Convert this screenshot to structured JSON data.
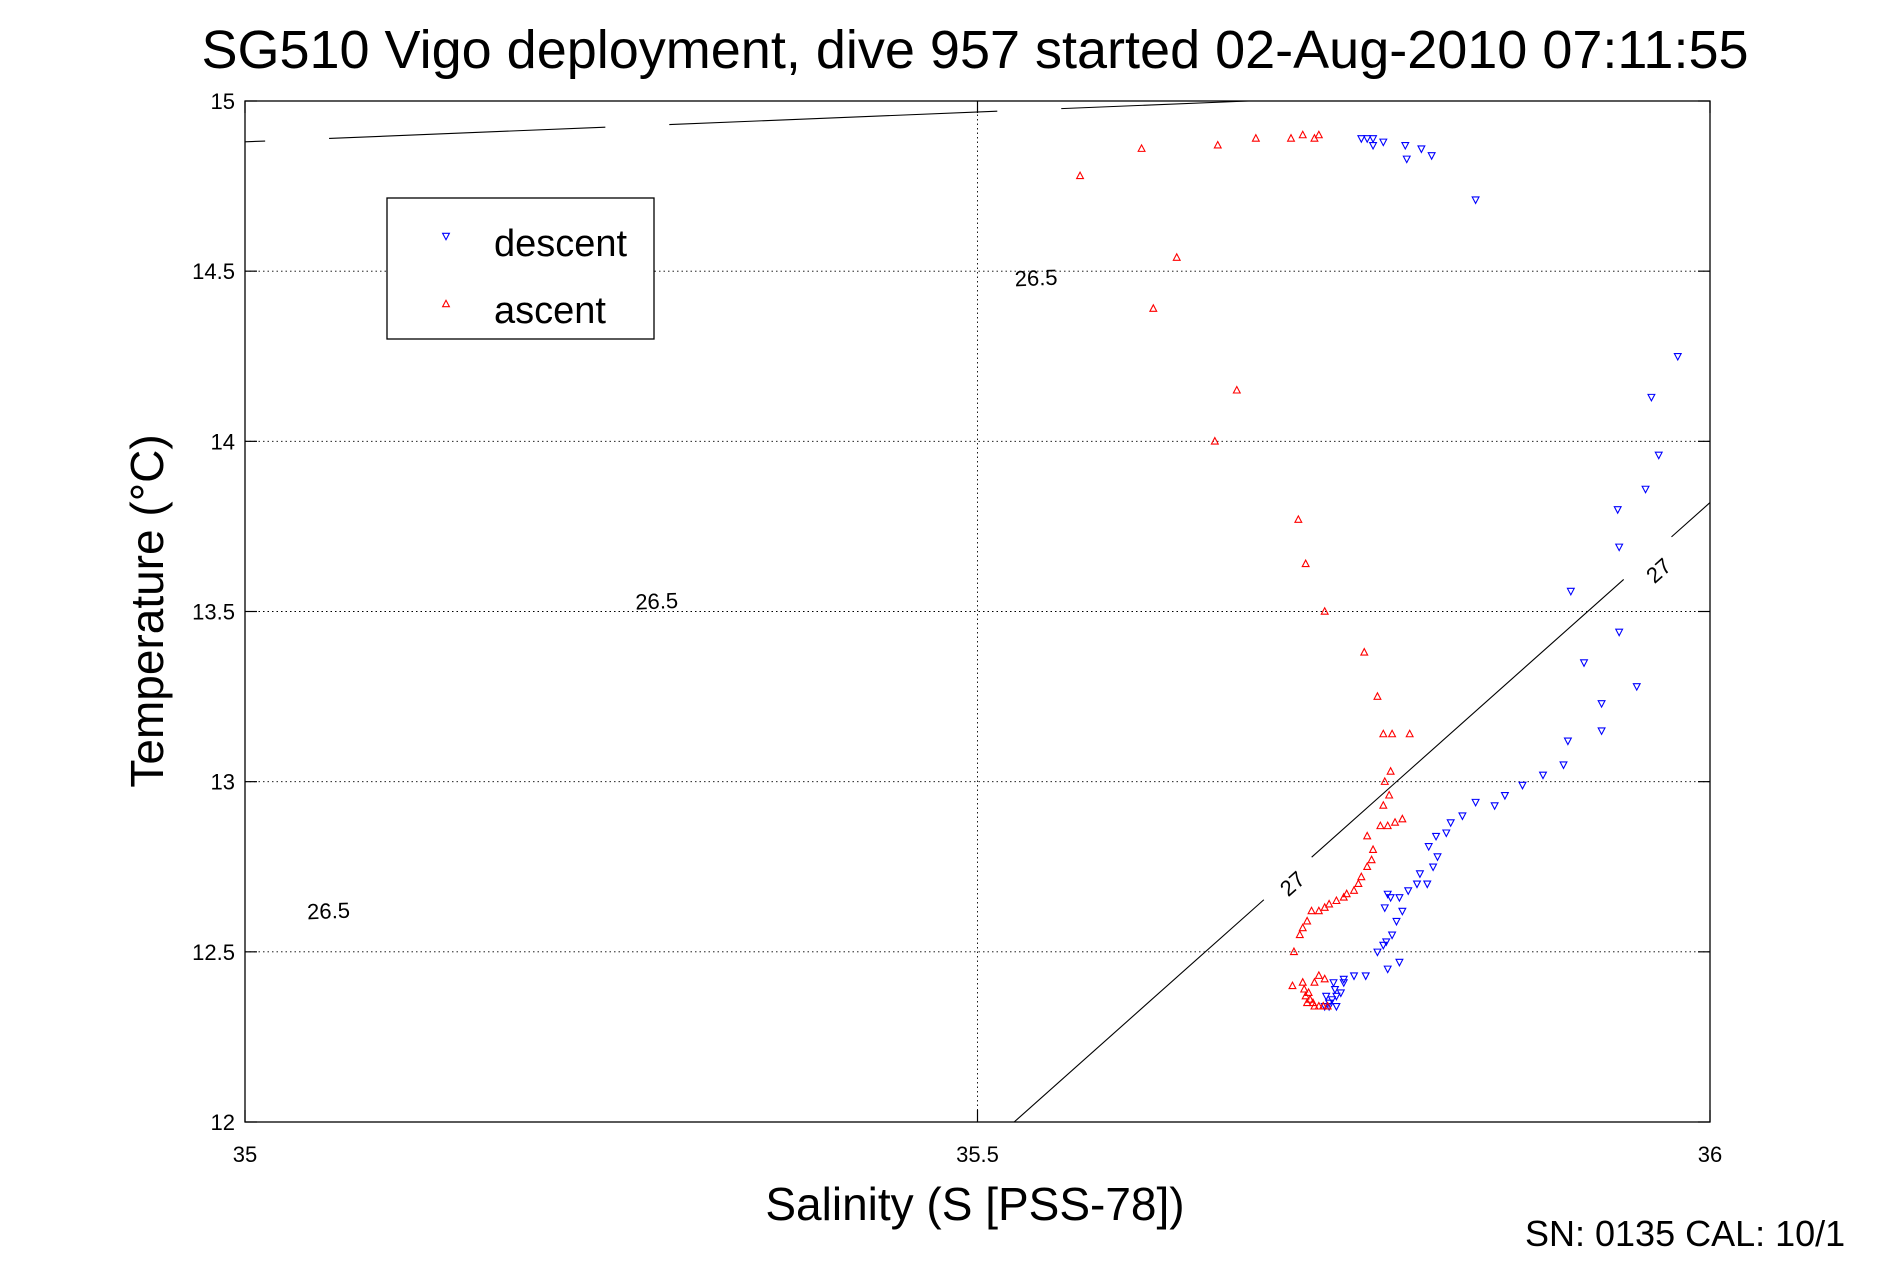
{
  "chart_data": {
    "type": "scatter",
    "title": "SG510 Vigo deployment, dive 957 started 02-Aug-2010 07:11:55",
    "xlabel": "Salinity (S [PSS-78])",
    "ylabel": "Temperature (°C)",
    "xlim": [
      35,
      36
    ],
    "ylim": [
      12,
      15
    ],
    "xticks": [
      35,
      35.5,
      36
    ],
    "xtick_labels": [
      "35",
      "35.5",
      "36"
    ],
    "yticks": [
      12,
      12.5,
      13,
      13.5,
      14,
      14.5,
      15
    ],
    "ytick_labels": [
      "12",
      "12.5",
      "13",
      "13.5",
      "14",
      "14.5",
      "15"
    ],
    "grid": true,
    "legend_position": "top-left",
    "footer": "SN: 0135  CAL: 10/1",
    "series": [
      {
        "name": "descent",
        "color": "#0000ff",
        "marker": "triangle-down",
        "points": [
          [
            35.762,
            14.89
          ],
          [
            35.766,
            14.89
          ],
          [
            35.77,
            14.89
          ],
          [
            35.777,
            14.88
          ],
          [
            35.77,
            14.87
          ],
          [
            35.792,
            14.87
          ],
          [
            35.803,
            14.86
          ],
          [
            35.81,
            14.84
          ],
          [
            35.793,
            14.83
          ],
          [
            35.84,
            14.71
          ],
          [
            35.978,
            14.25
          ],
          [
            35.96,
            14.13
          ],
          [
            35.965,
            13.96
          ],
          [
            35.956,
            13.86
          ],
          [
            35.937,
            13.8
          ],
          [
            35.938,
            13.69
          ],
          [
            35.905,
            13.56
          ],
          [
            35.938,
            13.44
          ],
          [
            35.914,
            13.35
          ],
          [
            35.95,
            13.28
          ],
          [
            35.926,
            13.23
          ],
          [
            35.926,
            13.15
          ],
          [
            35.903,
            13.12
          ],
          [
            35.9,
            13.05
          ],
          [
            35.886,
            13.02
          ],
          [
            35.872,
            12.99
          ],
          [
            35.86,
            12.96
          ],
          [
            35.853,
            12.93
          ],
          [
            35.84,
            12.94
          ],
          [
            35.831,
            12.9
          ],
          [
            35.823,
            12.88
          ],
          [
            35.82,
            12.85
          ],
          [
            35.813,
            12.84
          ],
          [
            35.808,
            12.81
          ],
          [
            35.814,
            12.78
          ],
          [
            35.811,
            12.75
          ],
          [
            35.802,
            12.73
          ],
          [
            35.807,
            12.7
          ],
          [
            35.8,
            12.7
          ],
          [
            35.794,
            12.68
          ],
          [
            35.788,
            12.66
          ],
          [
            35.782,
            12.66
          ],
          [
            35.78,
            12.67
          ],
          [
            35.778,
            12.63
          ],
          [
            35.79,
            12.62
          ],
          [
            35.786,
            12.59
          ],
          [
            35.783,
            12.55
          ],
          [
            35.779,
            12.53
          ],
          [
            35.777,
            12.52
          ],
          [
            35.773,
            12.5
          ],
          [
            35.788,
            12.47
          ],
          [
            35.78,
            12.45
          ],
          [
            35.765,
            12.43
          ],
          [
            35.757,
            12.43
          ],
          [
            35.75,
            12.42
          ],
          [
            35.743,
            12.41
          ],
          [
            35.75,
            12.41
          ],
          [
            35.744,
            12.39
          ],
          [
            35.748,
            12.38
          ],
          [
            35.745,
            12.37
          ],
          [
            35.742,
            12.36
          ],
          [
            35.738,
            12.37
          ],
          [
            35.74,
            12.35
          ],
          [
            35.745,
            12.34
          ],
          [
            35.74,
            12.34
          ],
          [
            35.737,
            12.34
          ]
        ]
      },
      {
        "name": "ascent",
        "color": "#ff0000",
        "marker": "triangle-up",
        "points": [
          [
            35.57,
            14.78
          ],
          [
            35.612,
            14.86
          ],
          [
            35.664,
            14.87
          ],
          [
            35.69,
            14.89
          ],
          [
            35.714,
            14.89
          ],
          [
            35.722,
            14.9
          ],
          [
            35.73,
            14.89
          ],
          [
            35.733,
            14.9
          ],
          [
            35.636,
            14.54
          ],
          [
            35.62,
            14.39
          ],
          [
            35.677,
            14.15
          ],
          [
            35.662,
            14.0
          ],
          [
            35.719,
            13.77
          ],
          [
            35.724,
            13.64
          ],
          [
            35.737,
            13.5
          ],
          [
            35.764,
            13.38
          ],
          [
            35.773,
            13.25
          ],
          [
            35.777,
            13.14
          ],
          [
            35.783,
            13.14
          ],
          [
            35.795,
            13.14
          ],
          [
            35.782,
            13.03
          ],
          [
            35.778,
            13.0
          ],
          [
            35.781,
            12.96
          ],
          [
            35.777,
            12.93
          ],
          [
            35.79,
            12.89
          ],
          [
            35.785,
            12.88
          ],
          [
            35.78,
            12.87
          ],
          [
            35.775,
            12.87
          ],
          [
            35.766,
            12.84
          ],
          [
            35.77,
            12.8
          ],
          [
            35.769,
            12.77
          ],
          [
            35.766,
            12.75
          ],
          [
            35.762,
            12.72
          ],
          [
            35.76,
            12.7
          ],
          [
            35.757,
            12.68
          ],
          [
            35.752,
            12.67
          ],
          [
            35.75,
            12.66
          ],
          [
            35.745,
            12.65
          ],
          [
            35.74,
            12.64
          ],
          [
            35.737,
            12.63
          ],
          [
            35.733,
            12.62
          ],
          [
            35.728,
            12.62
          ],
          [
            35.725,
            12.59
          ],
          [
            35.722,
            12.57
          ],
          [
            35.72,
            12.55
          ],
          [
            35.716,
            12.5
          ],
          [
            35.733,
            12.43
          ],
          [
            35.737,
            12.42
          ],
          [
            35.73,
            12.41
          ],
          [
            35.722,
            12.41
          ],
          [
            35.715,
            12.4
          ],
          [
            35.723,
            12.39
          ],
          [
            35.726,
            12.38
          ],
          [
            35.724,
            12.37
          ],
          [
            35.727,
            12.36
          ],
          [
            35.725,
            12.35
          ],
          [
            35.729,
            12.35
          ],
          [
            35.733,
            12.34
          ],
          [
            35.736,
            12.34
          ],
          [
            35.739,
            12.34
          ],
          [
            35.73,
            12.34
          ]
        ]
      }
    ],
    "contours": [
      {
        "level": "26.5",
        "line": [
          [
            35.0,
            14.88
          ],
          [
            35.685,
            15.0
          ]
        ],
        "labels": [
          [
            35.057,
            12.62
          ],
          [
            35.281,
            13.53
          ],
          [
            35.54,
            14.48
          ]
        ]
      },
      {
        "level": "27",
        "line": [
          [
            35.525,
            12.0
          ],
          [
            36.0,
            13.82
          ]
        ],
        "labels": [
          [
            35.715,
            12.7
          ],
          [
            35.965,
            13.62
          ]
        ]
      }
    ]
  }
}
